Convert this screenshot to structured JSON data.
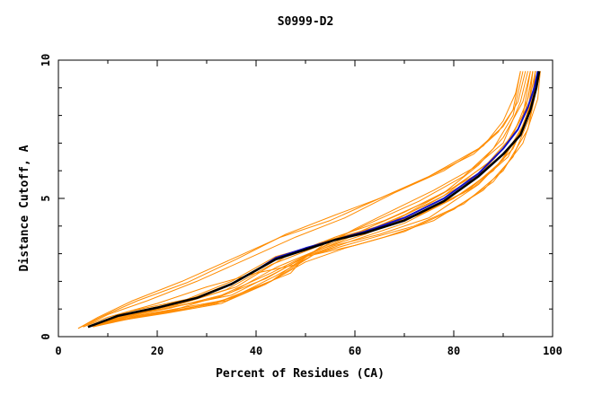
{
  "chart_data": {
    "type": "line",
    "title": "S0999-D2",
    "xlabel": "Percent of Residues (CA)",
    "ylabel": "Distance Cutoff, A",
    "xlim": [
      0,
      100
    ],
    "ylim": [
      0,
      10
    ],
    "xticks": [
      0,
      20,
      40,
      60,
      80,
      100
    ],
    "yticks": [
      0,
      5,
      10
    ],
    "xtick_labels": [
      "0",
      "20",
      "40",
      "60",
      "80",
      "100"
    ],
    "ytick_labels": [
      "0",
      "5",
      "10"
    ],
    "grid": false,
    "legend": "none",
    "colors": {
      "orange": "#ff8c00",
      "blue": "#1010c8",
      "black": "#000000"
    },
    "series": [
      {
        "color": "orange",
        "points": [
          [
            4,
            0.3
          ],
          [
            8,
            0.7
          ],
          [
            15,
            1.3
          ],
          [
            25,
            2.0
          ],
          [
            35,
            2.8
          ],
          [
            45,
            3.6
          ],
          [
            55,
            4.2
          ],
          [
            65,
            5.0
          ],
          [
            75,
            5.8
          ],
          [
            85,
            6.8
          ],
          [
            90,
            7.6
          ],
          [
            93,
            8.5
          ],
          [
            94.5,
            9.6
          ]
        ]
      },
      {
        "color": "orange",
        "points": [
          [
            4,
            0.3
          ],
          [
            9,
            0.75
          ],
          [
            16,
            1.3
          ],
          [
            26,
            1.95
          ],
          [
            36,
            2.8
          ],
          [
            46,
            3.7
          ],
          [
            56,
            4.4
          ],
          [
            65,
            5.0
          ],
          [
            74,
            5.7
          ],
          [
            84,
            6.6
          ],
          [
            89,
            7.4
          ],
          [
            92,
            8.2
          ],
          [
            93.5,
            9.6
          ]
        ]
      },
      {
        "color": "orange",
        "points": [
          [
            5,
            0.35
          ],
          [
            10,
            0.8
          ],
          [
            18,
            1.3
          ],
          [
            28,
            2.0
          ],
          [
            38,
            2.8
          ],
          [
            48,
            3.6
          ],
          [
            58,
            4.3
          ],
          [
            68,
            5.2
          ],
          [
            78,
            6.0
          ],
          [
            86,
            6.9
          ],
          [
            90,
            7.8
          ],
          [
            92.5,
            8.8
          ],
          [
            93.5,
            9.6
          ]
        ]
      },
      {
        "color": "orange",
        "points": [
          [
            5,
            0.35
          ],
          [
            10,
            0.7
          ],
          [
            20,
            1.2
          ],
          [
            30,
            1.8
          ],
          [
            40,
            2.3
          ],
          [
            48,
            2.6
          ],
          [
            55,
            3.5
          ],
          [
            62,
            3.8
          ],
          [
            70,
            4.4
          ],
          [
            78,
            5.2
          ],
          [
            85,
            6.2
          ],
          [
            90,
            7.2
          ],
          [
            94,
            8.5
          ],
          [
            95.5,
            9.6
          ]
        ]
      },
      {
        "color": "orange",
        "points": [
          [
            6,
            0.35
          ],
          [
            12,
            0.6
          ],
          [
            22,
            0.9
          ],
          [
            32,
            1.2
          ],
          [
            40,
            1.8
          ],
          [
            47,
            2.3
          ],
          [
            50,
            2.9
          ],
          [
            56,
            3.3
          ],
          [
            65,
            3.7
          ],
          [
            75,
            4.3
          ],
          [
            85,
            5.5
          ],
          [
            92,
            6.8
          ],
          [
            95,
            8.0
          ],
          [
            96,
            9.6
          ]
        ]
      },
      {
        "color": "orange",
        "points": [
          [
            6,
            0.35
          ],
          [
            13,
            0.6
          ],
          [
            22,
            0.85
          ],
          [
            33,
            1.2
          ],
          [
            42,
            1.9
          ],
          [
            50,
            2.7
          ],
          [
            58,
            3.2
          ],
          [
            66,
            3.6
          ],
          [
            76,
            4.2
          ],
          [
            86,
            5.3
          ],
          [
            92,
            6.5
          ],
          [
            95.5,
            8.0
          ],
          [
            96.5,
            9.6
          ]
        ]
      },
      {
        "color": "orange",
        "points": [
          [
            6,
            0.35
          ],
          [
            12,
            0.65
          ],
          [
            22,
            0.95
          ],
          [
            33,
            1.3
          ],
          [
            43,
            2.0
          ],
          [
            52,
            3.0
          ],
          [
            60,
            3.5
          ],
          [
            70,
            4.1
          ],
          [
            80,
            5.0
          ],
          [
            88,
            6.0
          ],
          [
            93,
            7.2
          ],
          [
            96,
            8.6
          ],
          [
            97,
            9.6
          ]
        ]
      },
      {
        "color": "orange",
        "points": [
          [
            6,
            0.35
          ],
          [
            12,
            0.7
          ],
          [
            21,
            1.0
          ],
          [
            32,
            1.4
          ],
          [
            42,
            2.1
          ],
          [
            51,
            3.0
          ],
          [
            59,
            3.6
          ],
          [
            68,
            4.2
          ],
          [
            78,
            5.1
          ],
          [
            87,
            6.3
          ],
          [
            92,
            7.3
          ],
          [
            95,
            8.6
          ],
          [
            96,
            9.6
          ]
        ]
      },
      {
        "color": "orange",
        "points": [
          [
            6,
            0.35
          ],
          [
            14,
            0.75
          ],
          [
            24,
            1.1
          ],
          [
            35,
            1.5
          ],
          [
            45,
            2.4
          ],
          [
            53,
            3.2
          ],
          [
            61,
            3.8
          ],
          [
            70,
            4.5
          ],
          [
            80,
            5.4
          ],
          [
            88,
            6.4
          ],
          [
            93,
            7.5
          ],
          [
            96,
            8.8
          ],
          [
            97,
            9.6
          ]
        ]
      },
      {
        "color": "orange",
        "points": [
          [
            6,
            0.35
          ],
          [
            15,
            0.8
          ],
          [
            25,
            1.2
          ],
          [
            36,
            1.8
          ],
          [
            46,
            2.9
          ],
          [
            56,
            3.6
          ],
          [
            66,
            4.2
          ],
          [
            76,
            5.0
          ],
          [
            86,
            6.0
          ],
          [
            91,
            7.0
          ],
          [
            94.5,
            8.2
          ],
          [
            96,
            9.6
          ]
        ]
      },
      {
        "color": "orange",
        "points": [
          [
            7,
            0.35
          ],
          [
            14,
            0.85
          ],
          [
            26,
            1.3
          ],
          [
            36,
            2.0
          ],
          [
            45,
            2.9
          ],
          [
            55,
            3.5
          ],
          [
            65,
            4.0
          ],
          [
            75,
            4.8
          ],
          [
            84,
            5.7
          ],
          [
            90,
            6.8
          ],
          [
            94,
            8.0
          ],
          [
            95.5,
            9.6
          ]
        ]
      },
      {
        "color": "orange",
        "points": [
          [
            6,
            0.35
          ],
          [
            14,
            0.9
          ],
          [
            26,
            1.35
          ],
          [
            35,
            2.0
          ],
          [
            44,
            2.9
          ],
          [
            54,
            3.4
          ],
          [
            64,
            3.9
          ],
          [
            74,
            4.5
          ],
          [
            84,
            5.4
          ],
          [
            91,
            6.5
          ],
          [
            95,
            8.0
          ],
          [
            97,
            9.6
          ]
        ]
      },
      {
        "color": "orange",
        "points": [
          [
            6,
            0.35
          ],
          [
            13,
            0.8
          ],
          [
            24,
            1.2
          ],
          [
            34,
            1.8
          ],
          [
            43,
            2.7
          ],
          [
            53,
            3.4
          ],
          [
            63,
            3.9
          ],
          [
            73,
            4.4
          ],
          [
            83,
            5.3
          ],
          [
            90,
            6.4
          ],
          [
            94.5,
            7.8
          ],
          [
            96.5,
            9.6
          ]
        ]
      },
      {
        "color": "orange",
        "points": [
          [
            8,
            0.4
          ],
          [
            16,
            0.7
          ],
          [
            26,
            1.0
          ],
          [
            35,
            1.4
          ],
          [
            44,
            2.2
          ],
          [
            52,
            3.0
          ],
          [
            62,
            3.5
          ],
          [
            72,
            4.0
          ],
          [
            82,
            4.8
          ],
          [
            90,
            6.0
          ],
          [
            95,
            7.5
          ],
          [
            97.5,
            9.6
          ]
        ]
      },
      {
        "color": "orange",
        "points": [
          [
            7,
            0.35
          ],
          [
            15,
            0.7
          ],
          [
            25,
            1.0
          ],
          [
            34,
            1.3
          ],
          [
            43,
            2.0
          ],
          [
            50,
            2.9
          ],
          [
            60,
            3.3
          ],
          [
            70,
            3.8
          ],
          [
            80,
            4.6
          ],
          [
            88,
            5.6
          ],
          [
            94,
            7.0
          ],
          [
            97,
            8.6
          ],
          [
            97.5,
            9.6
          ]
        ]
      },
      {
        "color": "orange",
        "points": [
          [
            6,
            0.35
          ],
          [
            13,
            0.7
          ],
          [
            23,
            1.05
          ],
          [
            33,
            1.5
          ],
          [
            43,
            2.3
          ],
          [
            52,
            3.1
          ],
          [
            62,
            3.7
          ],
          [
            72,
            4.4
          ],
          [
            82,
            5.2
          ],
          [
            89,
            6.2
          ],
          [
            94,
            7.6
          ],
          [
            96,
            8.6
          ],
          [
            96.5,
            9.6
          ]
        ]
      },
      {
        "color": "orange",
        "points": [
          [
            6,
            0.35
          ],
          [
            14,
            0.7
          ],
          [
            24,
            1.0
          ],
          [
            35,
            1.6
          ],
          [
            44,
            2.5
          ],
          [
            52,
            3.1
          ],
          [
            60,
            3.9
          ],
          [
            68,
            4.6
          ],
          [
            76,
            5.3
          ],
          [
            84,
            6.1
          ],
          [
            90,
            7.0
          ],
          [
            93.5,
            8.5
          ],
          [
            95,
            9.6
          ]
        ]
      },
      {
        "color": "orange",
        "points": [
          [
            6,
            0.35
          ],
          [
            14,
            0.8
          ],
          [
            24,
            1.15
          ],
          [
            34,
            1.7
          ],
          [
            43,
            2.6
          ],
          [
            53,
            3.3
          ],
          [
            63,
            4.1
          ],
          [
            73,
            4.9
          ],
          [
            82,
            5.8
          ],
          [
            88,
            6.8
          ],
          [
            92,
            8.0
          ],
          [
            94,
            9.6
          ]
        ]
      },
      {
        "color": "blue",
        "points": [
          [
            6,
            0.35
          ],
          [
            12,
            0.75
          ],
          [
            20,
            1.05
          ],
          [
            28,
            1.4
          ],
          [
            35,
            1.9
          ],
          [
            40,
            2.4
          ],
          [
            44,
            2.85
          ],
          [
            50,
            3.2
          ],
          [
            56,
            3.5
          ],
          [
            62,
            3.8
          ],
          [
            70,
            4.3
          ],
          [
            78,
            5.0
          ],
          [
            85,
            5.9
          ],
          [
            90,
            6.8
          ],
          [
            93,
            7.5
          ],
          [
            95,
            8.3
          ],
          [
            96.3,
            9.0
          ],
          [
            97,
            9.6
          ]
        ]
      },
      {
        "color": "black",
        "points": [
          [
            6,
            0.35
          ],
          [
            12,
            0.75
          ],
          [
            20,
            1.05
          ],
          [
            28,
            1.4
          ],
          [
            35,
            1.9
          ],
          [
            40,
            2.4
          ],
          [
            44,
            2.8
          ],
          [
            50,
            3.15
          ],
          [
            56,
            3.5
          ],
          [
            62,
            3.75
          ],
          [
            70,
            4.2
          ],
          [
            78,
            4.9
          ],
          [
            85,
            5.8
          ],
          [
            90,
            6.6
          ],
          [
            93.5,
            7.3
          ],
          [
            95.5,
            8.2
          ],
          [
            96.7,
            9.0
          ],
          [
            97.3,
            9.6
          ]
        ]
      }
    ]
  }
}
